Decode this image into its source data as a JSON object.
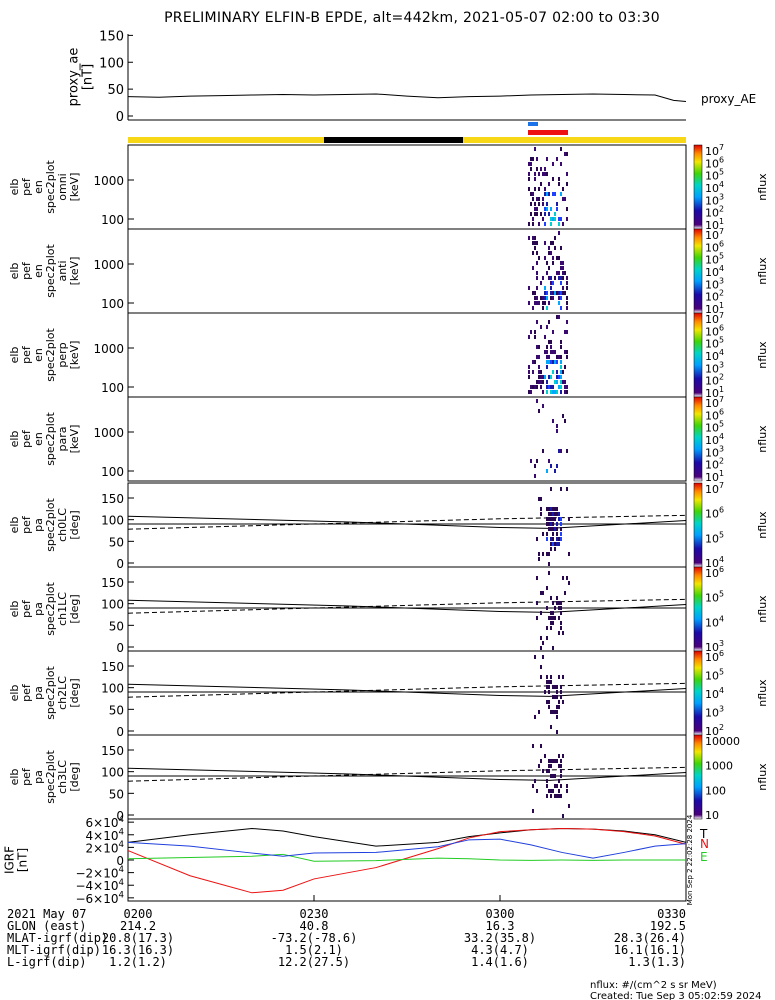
{
  "title": "PRELIMINARY ELFIN-B EPDE, alt=442km, 2021-05-07 02:00 to 03:30",
  "colors": {
    "yellow": "#f7d716",
    "black": "#000000",
    "red": "#ee1111",
    "blue": "#1a73e8",
    "green": "#22cc22",
    "field_blue": "#1f3fdd",
    "dark_purple": "#2a0850"
  },
  "proxy_ae": {
    "ylabel_lines": [
      "proxy_ae",
      "[nT]"
    ],
    "yticks": [
      "150",
      "100",
      "50",
      "0"
    ],
    "legend": "proxy_AE",
    "ylim": [
      0,
      160
    ],
    "t_min": [
      0,
      5,
      10,
      15,
      20,
      25,
      30,
      35,
      40,
      45,
      50,
      55,
      60,
      65,
      70,
      75,
      80,
      85,
      88,
      90
    ],
    "values": [
      36,
      35,
      37,
      38,
      39,
      40,
      39,
      40,
      41,
      37,
      34,
      36,
      37,
      39,
      40,
      41,
      40,
      39,
      29,
      27
    ]
  },
  "spec_panels": [
    {
      "ylabel_lines": [
        "elb",
        "pef",
        "en",
        "spec2plot",
        "omni",
        "[keV]"
      ],
      "yticks": [
        "1000",
        "100"
      ],
      "cb_label": "nflux",
      "cb_ticks": [
        "10^7",
        "10^6",
        "10^5",
        "10^4",
        "10^3",
        "10^2",
        "10^1"
      ]
    },
    {
      "ylabel_lines": [
        "elb",
        "pef",
        "en",
        "spec2plot",
        "anti",
        "[keV]"
      ],
      "yticks": [
        "1000",
        "100"
      ],
      "cb_label": "nflux",
      "cb_ticks": [
        "10^7",
        "10^6",
        "10^5",
        "10^4",
        "10^3",
        "10^2",
        "10^1"
      ]
    },
    {
      "ylabel_lines": [
        "elb",
        "pef",
        "en",
        "spec2plot",
        "perp",
        "[keV]"
      ],
      "yticks": [
        "1000",
        "100"
      ],
      "cb_label": "nflux",
      "cb_ticks": [
        "10^7",
        "10^6",
        "10^5",
        "10^4",
        "10^3",
        "10^2",
        "10^1"
      ]
    },
    {
      "ylabel_lines": [
        "elb",
        "pef",
        "en",
        "spec2plot",
        "para",
        "[keV]"
      ],
      "yticks": [
        "1000",
        "100"
      ],
      "cb_label": "nflux",
      "cb_ticks": [
        "10^7",
        "10^6",
        "10^5",
        "10^4",
        "10^3",
        "10^2",
        "10^1"
      ]
    }
  ],
  "pa_panels": [
    {
      "ylabel_lines": [
        "elb",
        "pef",
        "pa",
        "spec2plot",
        "ch0LC",
        "[deg]"
      ],
      "yticks": [
        "150",
        "100",
        "50",
        "0"
      ],
      "cb_label": "nflux",
      "cb_ticks": [
        "10^7",
        "10^6",
        "10^5",
        "10^4"
      ]
    },
    {
      "ylabel_lines": [
        "elb",
        "pef",
        "pa",
        "spec2plot",
        "ch1LC",
        "[deg]"
      ],
      "yticks": [
        "150",
        "100",
        "50",
        "0"
      ],
      "cb_label": "nflux",
      "cb_ticks": [
        "10^6",
        "10^5",
        "10^4",
        "10^3"
      ]
    },
    {
      "ylabel_lines": [
        "elb",
        "pef",
        "pa",
        "spec2plot",
        "ch2LC",
        "[deg]"
      ],
      "yticks": [
        "150",
        "100",
        "50",
        "0"
      ],
      "cb_label": "nflux",
      "cb_ticks": [
        "10^6",
        "10^5",
        "10^4",
        "10^3",
        "10^2"
      ]
    },
    {
      "ylabel_lines": [
        "elb",
        "pef",
        "pa",
        "spec2plot",
        "ch3LC",
        "[deg]"
      ],
      "yticks": [
        "150",
        "100",
        "50",
        "0"
      ],
      "cb_label": "nflux",
      "cb_ticks": [
        "10000",
        "1000",
        "100",
        "10"
      ]
    }
  ],
  "igrf": {
    "ylabel_lines": [
      "IGRF",
      "[nT]"
    ],
    "yticks": [
      "6×10^4",
      "4×10^4",
      "2×10^4",
      "0",
      "−2×10^4",
      "−4×10^4",
      "−6×10^4"
    ],
    "legend": [
      "T",
      "N",
      "E"
    ],
    "side_note": "Mon Sep  2 22:02:28 2024",
    "ylim": [
      -65000,
      65000
    ],
    "t_min": [
      0,
      10,
      20,
      25,
      30,
      40,
      50,
      55,
      60,
      65,
      70,
      75,
      80,
      85,
      90
    ],
    "series": [
      {
        "name": "T",
        "color": "#000000",
        "values": [
          28000,
          40000,
          50000,
          46000,
          37000,
          22000,
          28000,
          37000,
          43000,
          48000,
          50000,
          49000,
          46000,
          40000,
          28000
        ]
      },
      {
        "name": "N",
        "color": "#ee1111",
        "values": [
          15000,
          -25000,
          -52000,
          -48000,
          -30000,
          -12000,
          18000,
          35000,
          45000,
          48000,
          50000,
          49000,
          45000,
          38000,
          25000
        ]
      },
      {
        "name": "E",
        "color": "#22cc22",
        "values": [
          2000,
          4000,
          6000,
          9000,
          -2000,
          -1000,
          3000,
          2000,
          0,
          -500,
          0,
          -500,
          0,
          0,
          0
        ]
      },
      {
        "name": "",
        "color": "#1f3fdd",
        "values": [
          28000,
          22000,
          11000,
          6000,
          11000,
          12000,
          21000,
          32000,
          33000,
          24000,
          12000,
          3000,
          12000,
          22000,
          26000
        ]
      }
    ]
  },
  "footer": {
    "row_labels": [
      "2021 May 07",
      "GLON (east)",
      "MLAT-igrf(dip)",
      "MLT-igrf(dip)",
      "L-igrf(dip)"
    ],
    "time_ticks": [
      "0200",
      "0230",
      "0300",
      "0330"
    ],
    "columns": [
      [
        "214.2",
        "20.8(17.3)",
        "16.3(16.3)",
        "1.2(1.2)"
      ],
      [
        "40.8",
        "-73.2(-78.6)",
        "1.5(2.1)",
        "12.2(27.5)"
      ],
      [
        "16.3",
        "33.2(35.8)",
        "4.3(4.7)",
        "1.4(1.6)"
      ],
      [
        "192.5",
        "28.3(26.4)",
        "16.1(16.1)",
        "1.3(1.3)"
      ]
    ],
    "units": "nflux: #/(cm^2 s sr MeV)",
    "created": "Created: Tue Sep  3 05:02:59 2024"
  }
}
